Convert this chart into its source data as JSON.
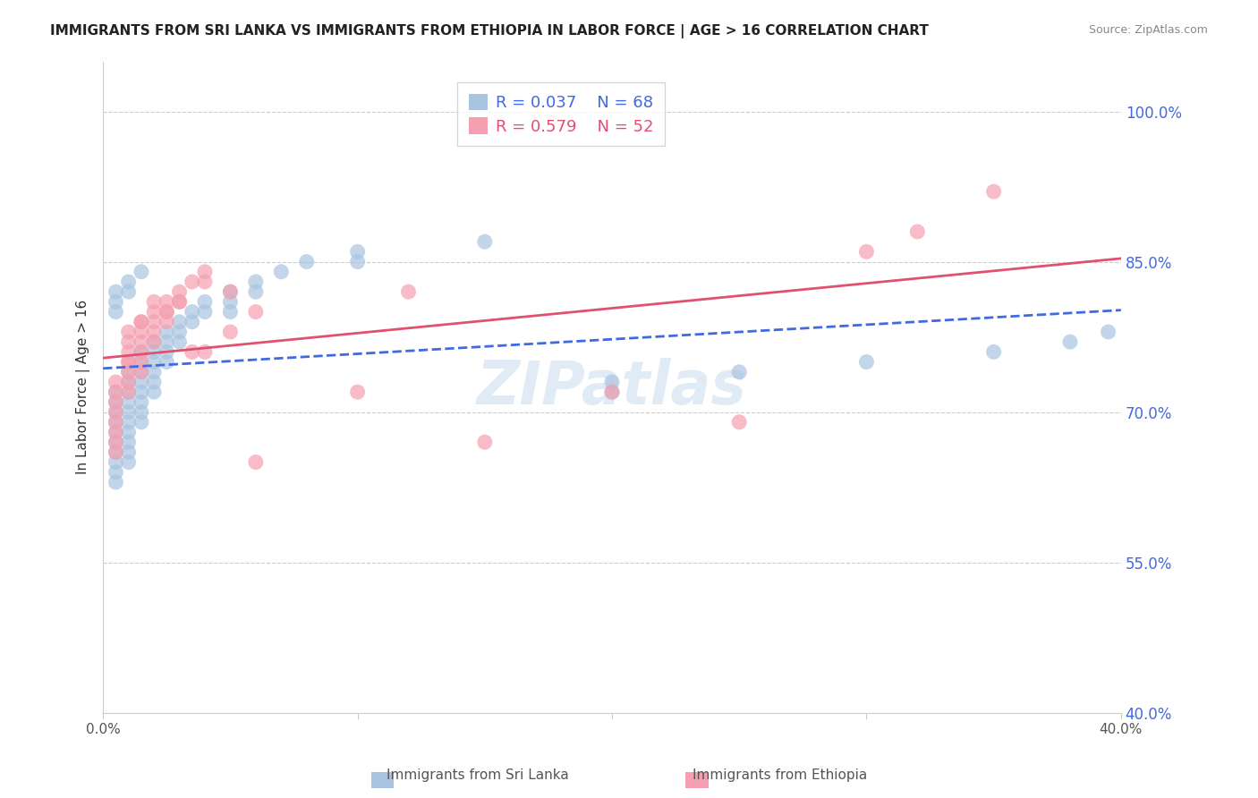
{
  "title": "IMMIGRANTS FROM SRI LANKA VS IMMIGRANTS FROM ETHIOPIA IN LABOR FORCE | AGE > 16 CORRELATION CHART",
  "source": "Source: ZipAtlas.com",
  "xlabel": "",
  "ylabel": "In Labor Force | Age > 16",
  "xmin": 0.0,
  "xmax": 0.4,
  "ymin": 0.4,
  "ymax": 1.05,
  "yticks": [
    1.0,
    0.85,
    0.7,
    0.55,
    0.4
  ],
  "ytick_labels": [
    "100.0%",
    "85.0%",
    "70.0%",
    "55.0%",
    "40.0%"
  ],
  "xticks": [
    0.0,
    0.1,
    0.2,
    0.3,
    0.4
  ],
  "xtick_labels": [
    "0.0%",
    "",
    "",
    "",
    "40.0%"
  ],
  "grid_color": "#cccccc",
  "background_color": "#ffffff",
  "sri_lanka_color": "#a8c4e0",
  "ethiopia_color": "#f4a0b0",
  "sri_lanka_R": 0.037,
  "sri_lanka_N": 68,
  "ethiopia_R": 0.579,
  "ethiopia_N": 52,
  "sri_lanka_line_color": "#4169e1",
  "ethiopia_line_color": "#e05070",
  "watermark": "ZIPatlas",
  "sri_lanka_x": [
    0.005,
    0.005,
    0.005,
    0.005,
    0.005,
    0.005,
    0.005,
    0.005,
    0.005,
    0.005,
    0.01,
    0.01,
    0.01,
    0.01,
    0.01,
    0.01,
    0.01,
    0.01,
    0.01,
    0.01,
    0.015,
    0.015,
    0.015,
    0.015,
    0.015,
    0.015,
    0.015,
    0.015,
    0.02,
    0.02,
    0.02,
    0.02,
    0.02,
    0.02,
    0.025,
    0.025,
    0.025,
    0.025,
    0.03,
    0.03,
    0.03,
    0.035,
    0.035,
    0.04,
    0.04,
    0.05,
    0.05,
    0.05,
    0.06,
    0.06,
    0.07,
    0.08,
    0.1,
    0.1,
    0.15,
    0.2,
    0.2,
    0.25,
    0.3,
    0.35,
    0.38,
    0.395,
    0.005,
    0.005,
    0.005,
    0.01,
    0.01,
    0.015
  ],
  "sri_lanka_y": [
    0.72,
    0.71,
    0.7,
    0.69,
    0.68,
    0.67,
    0.66,
    0.65,
    0.64,
    0.63,
    0.74,
    0.73,
    0.72,
    0.71,
    0.7,
    0.69,
    0.68,
    0.67,
    0.66,
    0.65,
    0.76,
    0.75,
    0.74,
    0.73,
    0.72,
    0.71,
    0.7,
    0.69,
    0.77,
    0.76,
    0.75,
    0.74,
    0.73,
    0.72,
    0.78,
    0.77,
    0.76,
    0.75,
    0.79,
    0.78,
    0.77,
    0.8,
    0.79,
    0.81,
    0.8,
    0.82,
    0.81,
    0.8,
    0.83,
    0.82,
    0.84,
    0.85,
    0.86,
    0.85,
    0.87,
    0.73,
    0.72,
    0.74,
    0.75,
    0.76,
    0.77,
    0.78,
    0.82,
    0.81,
    0.8,
    0.83,
    0.82,
    0.84
  ],
  "ethiopia_x": [
    0.005,
    0.005,
    0.005,
    0.005,
    0.005,
    0.005,
    0.005,
    0.005,
    0.01,
    0.01,
    0.01,
    0.01,
    0.01,
    0.01,
    0.01,
    0.015,
    0.015,
    0.015,
    0.015,
    0.015,
    0.015,
    0.02,
    0.02,
    0.02,
    0.02,
    0.025,
    0.025,
    0.025,
    0.03,
    0.03,
    0.035,
    0.04,
    0.04,
    0.05,
    0.06,
    0.1,
    0.12,
    0.15,
    0.2,
    0.25,
    0.3,
    0.32,
    0.35,
    0.01,
    0.015,
    0.02,
    0.025,
    0.03,
    0.035,
    0.04,
    0.05,
    0.06
  ],
  "ethiopia_y": [
    0.73,
    0.72,
    0.71,
    0.7,
    0.69,
    0.68,
    0.67,
    0.66,
    0.78,
    0.77,
    0.76,
    0.75,
    0.74,
    0.73,
    0.72,
    0.79,
    0.78,
    0.77,
    0.76,
    0.75,
    0.74,
    0.8,
    0.79,
    0.78,
    0.77,
    0.81,
    0.8,
    0.79,
    0.82,
    0.81,
    0.83,
    0.84,
    0.83,
    0.78,
    0.65,
    0.72,
    0.82,
    0.67,
    0.72,
    0.69,
    0.86,
    0.88,
    0.92,
    0.75,
    0.79,
    0.81,
    0.8,
    0.81,
    0.76,
    0.76,
    0.82,
    0.8
  ]
}
